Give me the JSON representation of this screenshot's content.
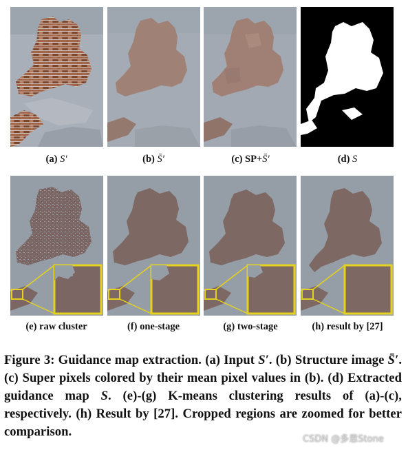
{
  "subfigures": [
    {
      "id": "a",
      "tag": "(a)",
      "symbol": "S′",
      "label": ""
    },
    {
      "id": "b",
      "tag": "(b)",
      "symbol": "S̄′",
      "label": ""
    },
    {
      "id": "c",
      "tag": "(c)",
      "label": "SP+",
      "symbol": "S̄′"
    },
    {
      "id": "d",
      "tag": "(d)",
      "symbol": "S",
      "label": ""
    },
    {
      "id": "e",
      "tag": "(e)",
      "label": "raw cluster"
    },
    {
      "id": "f",
      "tag": "(f)",
      "label": "one-stage"
    },
    {
      "id": "g",
      "tag": "(g)",
      "label": "two-stage"
    },
    {
      "id": "h",
      "tag": "(h)",
      "label": "result by [27]"
    }
  ],
  "caption": {
    "number": "Figure 3:",
    "p1": " Guidance map extraction. (a) Input ",
    "s1": "S′",
    "p2": ". (b) Structure image ",
    "s2": "S̄′",
    "p3": ". (c) Super pixels colored by their mean pixel values in (b). (d) Extracted guidance map ",
    "s3": "S",
    "p4": ". (e)-(g) K-means clustering results of (a)-(c), respectively. (h) Result by [27]. Cropped regions are zoomed for better comparison."
  },
  "watermark": "CSDN @多恩Stone",
  "colors": {
    "wall_gray": "#a7aeb7",
    "brick": "#8c5a43",
    "smooth_gray": "#a3a9b3",
    "smooth_brown": "#9f8175",
    "cluster_gray": "#959ea6",
    "cluster_brown": "#7b6663",
    "mask_black": "#000000",
    "mask_white": "#ffffff",
    "zoom_border": "#e6d21c"
  }
}
